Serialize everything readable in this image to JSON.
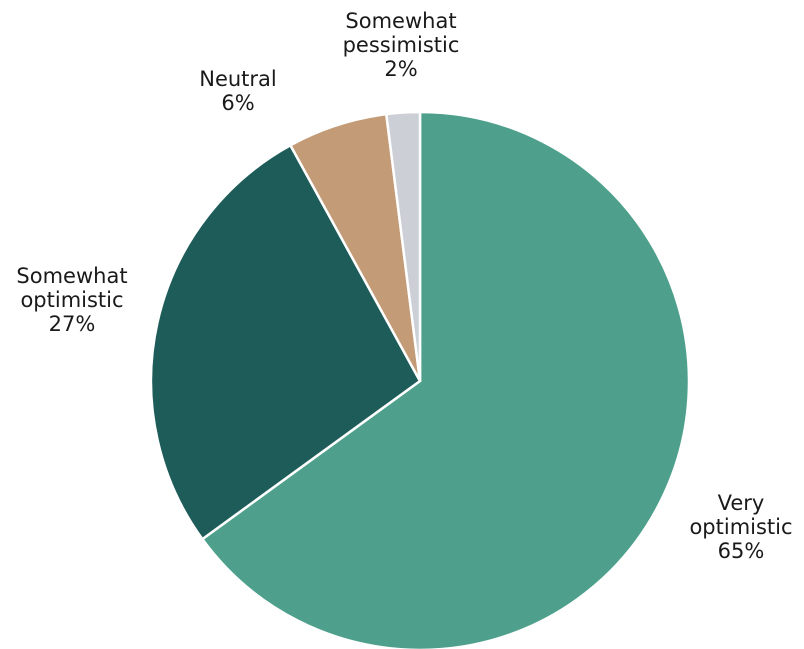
{
  "chart_data": {
    "type": "pie",
    "title": "",
    "start_angle_deg": 0,
    "direction": "clockwise",
    "slices": [
      {
        "label_lines": [
          "Very",
          "optimistic"
        ],
        "value": 65,
        "value_label": "65%",
        "color": "#4ea08c"
      },
      {
        "label_lines": [
          "Somewhat",
          "optimistic"
        ],
        "value": 27,
        "value_label": "27%",
        "color": "#1e5c5a"
      },
      {
        "label_lines": [
          "Neutral"
        ],
        "value": 6,
        "value_label": "6%",
        "color": "#c39b77"
      },
      {
        "label_lines": [
          "Somewhat",
          "pessimistic"
        ],
        "value": 2,
        "value_label": "2%",
        "color": "#ccd0d6"
      }
    ]
  }
}
